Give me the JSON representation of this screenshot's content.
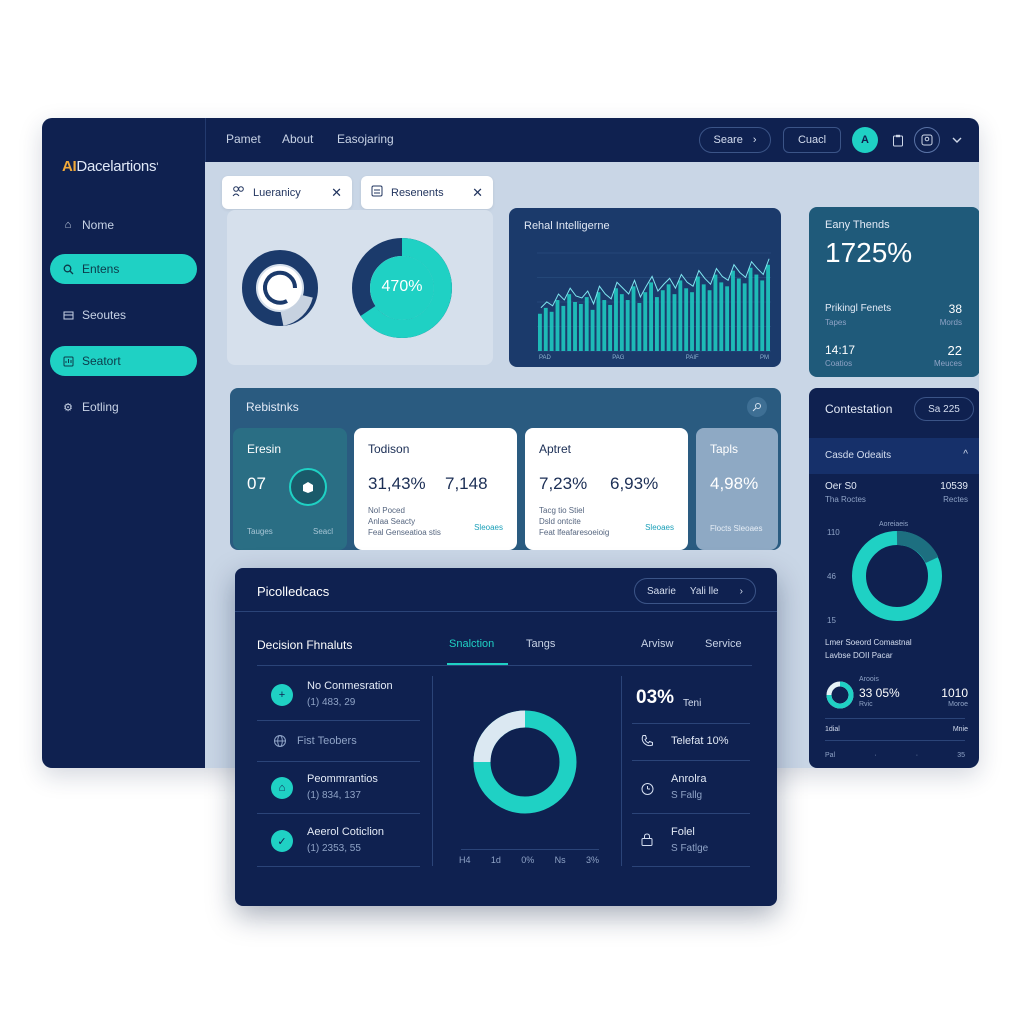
{
  "app": {
    "logo_ai": "AI",
    "logo_rest": "Dacelartions",
    "logo_mark": "'"
  },
  "sidebar": {
    "items": [
      {
        "label": "Nome",
        "icon": "home-icon",
        "active": false
      },
      {
        "label": "Entens",
        "icon": "search-icon",
        "active": true
      },
      {
        "label": "Seoutes",
        "icon": "grid-icon",
        "active": false
      },
      {
        "label": "Seatort",
        "icon": "chart-icon",
        "active": true
      },
      {
        "label": "Eotling",
        "icon": "settings-icon",
        "active": false
      }
    ]
  },
  "topbar": {
    "nav": [
      "Pamet",
      "About",
      "Easojaring"
    ],
    "search_label": "Seare",
    "search_chevron": "›",
    "action_label": "Cuacl",
    "avatar_letter": "A"
  },
  "chips": [
    {
      "label": "Lueranicy",
      "close": "✕"
    },
    {
      "label": "Resenents",
      "close": "✕"
    }
  ],
  "donuts": {
    "right_value": "470%"
  },
  "intel": {
    "title": "Rehal Intelligerne",
    "x_ticks": [
      "PAD",
      "PAG",
      "PAIF",
      "PM"
    ],
    "bars": [
      38,
      44,
      40,
      52,
      46,
      58,
      50,
      48,
      55,
      42,
      60,
      52,
      47,
      64,
      58,
      52,
      66,
      49,
      60,
      70,
      55,
      62,
      68,
      58,
      72,
      64,
      60,
      76,
      68,
      62,
      78,
      70,
      66,
      82,
      74,
      69,
      85,
      78,
      72,
      88
    ]
  },
  "trends": {
    "title": "Eany Thends",
    "value": "1725%",
    "row1_label": "Prikingl Fenets",
    "row1_sub": "Tapes",
    "row1_value": "38",
    "row1_value_sub": "Mords",
    "row2_left": "14:17",
    "row2_left_sub": "Coatios",
    "row2_value": "22",
    "row2_value_sub": "Meuces"
  },
  "rebistnks": {
    "title": "Rebistnks",
    "cards": [
      {
        "header": "Eresin",
        "value": "07",
        "foot_left": "Tauges",
        "foot_right": "Seacl"
      },
      {
        "header": "Todison",
        "v1": "31,43%",
        "v2": "7,148",
        "l1": "Nol Poced",
        "l2": "Anlaa Seacty",
        "l3": "Feal Genseatioa stis",
        "link": "Sleoaes"
      },
      {
        "header": "Aptret",
        "v1": "7,23%",
        "v2": "6,93%",
        "l1": "Tacg tio Stiel",
        "l2": "Dsld ontcite",
        "l3": "Feat lfeafaresoeioig",
        "link": "Sleoaes"
      },
      {
        "header": "Tapls",
        "value": "4,98%",
        "foot": "Flocts Sleoaes"
      }
    ]
  },
  "contest": {
    "title": "Contestation",
    "badge": "Sa 225",
    "section": "Casde Odeaits",
    "chevron": "^",
    "r1_left": "Oer S0",
    "r1_left_sub": "Tha Roctes",
    "r1_right": "10539",
    "r1_right_sub": "Rectes",
    "donut_top": "Aoreiaeis",
    "y_labels": [
      "110",
      "46",
      "15"
    ],
    "caption1": "Lmer Soeord Comastnal",
    "caption2": "Lavbse DOII Pacar",
    "mini_top": "Aroois",
    "mini_value": "33 05%",
    "mini_sub": "Rvic",
    "mini_right": "1010",
    "mini_right_sub": "Moroe",
    "foot_left": "1dial",
    "foot_right": "Mnie",
    "axis": [
      "Pal",
      "·",
      "·",
      "35"
    ]
  },
  "decision": {
    "title": "Picolledcacs",
    "search": "Saarie",
    "search_right": "Yali lle",
    "search_chevron": "›",
    "subtitle": "Decision Fhnaluts",
    "tabs": [
      "Snalction",
      "Tangs",
      "Arvisw",
      "Service"
    ],
    "rows": [
      {
        "title": "No Conmesration",
        "sub": "(1) 483, 29",
        "icon": "plus-icon",
        "glyph": "+"
      },
      {
        "title": "Fist Teobers",
        "sub": "",
        "icon": "globe-icon",
        "glyph": ""
      },
      {
        "title": "Peommrantios",
        "sub": "(1) 834, 137",
        "icon": "home-icon",
        "glyph": "⌂"
      },
      {
        "title": "Aeerol Coticlion",
        "sub": "(1) 2353, 55",
        "icon": "check-icon",
        "glyph": "✓"
      }
    ],
    "donut_axis": [
      "H4",
      "1d",
      "0%",
      "Ns",
      "3%"
    ],
    "stat_big": "03%",
    "stat_unit": "Teni",
    "right_rows": [
      {
        "title": "Telefat 10%",
        "sub": "",
        "icon": "phone-icon"
      },
      {
        "title": "Anrolra",
        "sub": "S Fallg",
        "icon": "clock-icon"
      },
      {
        "title": "Folel",
        "sub": "S Fatlge",
        "icon": "lock-icon"
      }
    ]
  }
}
